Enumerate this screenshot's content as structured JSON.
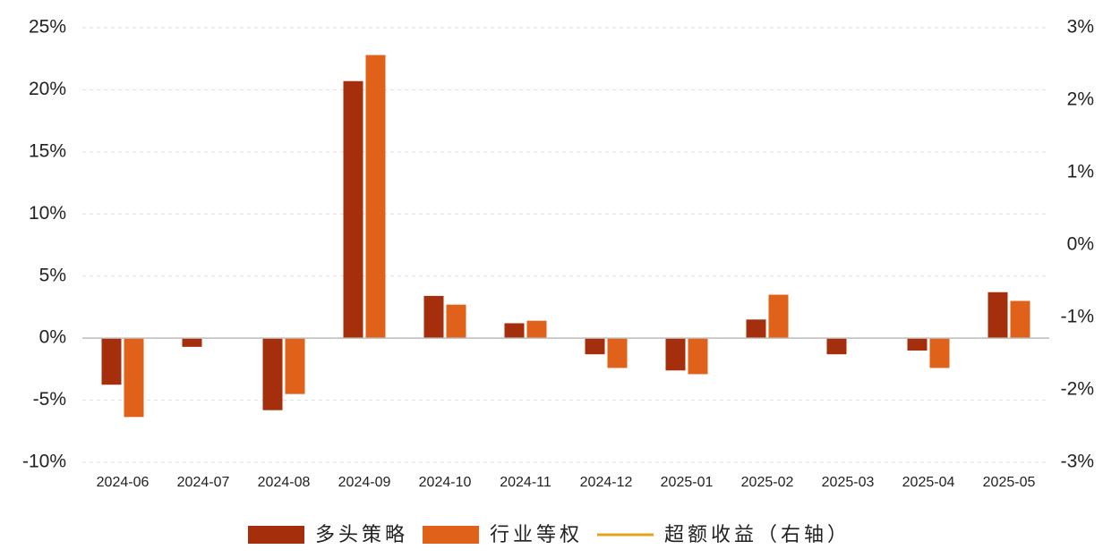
{
  "chart_data": {
    "type": "bar",
    "categories": [
      "2024-06",
      "2024-07",
      "2024-08",
      "2024-09",
      "2024-10",
      "2024-11",
      "2024-12",
      "2025-01",
      "2025-02",
      "2025-03",
      "2025-04",
      "2025-05"
    ],
    "series": [
      {
        "name": "多头策略",
        "color": "#a52f0c",
        "values": [
          -3.75,
          -0.7,
          -5.8,
          20.7,
          3.4,
          1.2,
          -1.3,
          -2.6,
          1.5,
          -1.3,
          -1.0,
          3.7
        ]
      },
      {
        "name": "行业等权",
        "color": "#e0621a",
        "values": [
          -6.35,
          0,
          -4.5,
          22.8,
          2.7,
          1.4,
          -2.4,
          -2.9,
          3.5,
          0,
          -2.4,
          3.0
        ]
      },
      {
        "name": "超额收益（右轴）",
        "color": "#e6a020",
        "type": "line",
        "axis": "y2",
        "values": [
          null,
          null,
          null,
          null,
          null,
          null,
          null,
          null,
          null,
          null,
          null,
          null
        ]
      }
    ],
    "ylim": [
      -10,
      25
    ],
    "yticks": [
      {
        "value": -10,
        "label": "-10%"
      },
      {
        "value": -5,
        "label": "-5%"
      },
      {
        "value": 0,
        "label": "0%"
      },
      {
        "value": 5,
        "label": "5%"
      },
      {
        "value": 10,
        "label": "10%"
      },
      {
        "value": 15,
        "label": "15%"
      },
      {
        "value": 20,
        "label": "20%"
      },
      {
        "value": 25,
        "label": "25%"
      }
    ],
    "y2lim": [
      -3,
      3
    ],
    "y2ticks": [
      {
        "value": -3,
        "label": "-3%"
      },
      {
        "value": -2,
        "label": "-2%"
      },
      {
        "value": -1,
        "label": "-1%"
      },
      {
        "value": 0,
        "label": "0%"
      },
      {
        "value": 1,
        "label": "1%"
      },
      {
        "value": 2,
        "label": "2%"
      },
      {
        "value": 3,
        "label": "3%"
      }
    ],
    "grid": true,
    "legend": "bottom"
  }
}
